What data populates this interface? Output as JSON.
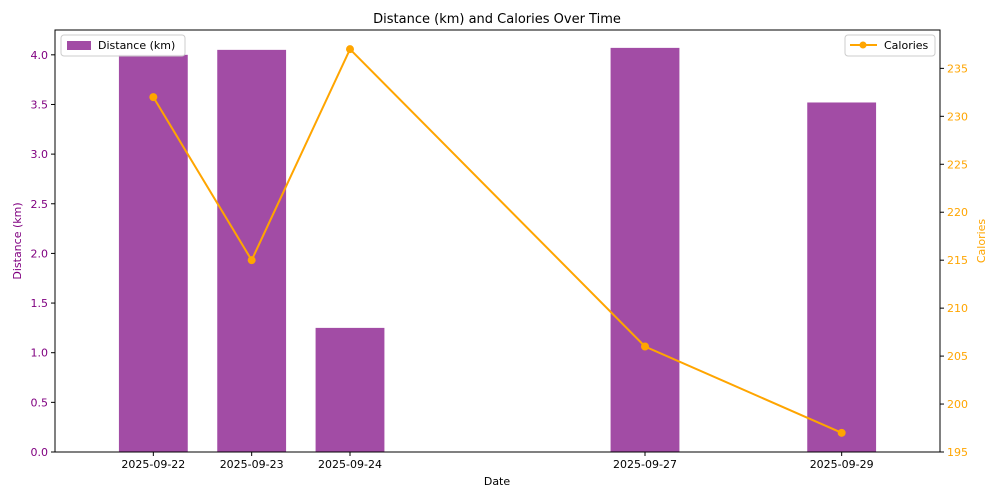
{
  "chart_data": {
    "type": "bar+line",
    "title": "Distance (km) and Calories Over Time",
    "xlabel": "Date",
    "x_axis_kind": "date",
    "x_range": [
      "2025-09-21",
      "2025-09-30"
    ],
    "categories": [
      "2025-09-22",
      "2025-09-23",
      "2025-09-24",
      "2025-09-27",
      "2025-09-29"
    ],
    "bar_series": {
      "name": "Distance (km)",
      "axis": "left",
      "color": "#a24ca5",
      "values": [
        4.0,
        4.05,
        1.25,
        4.07,
        3.52
      ]
    },
    "line_series": {
      "name": "Calories",
      "axis": "right",
      "color": "#ffa500",
      "marker": "circle",
      "values": [
        232,
        215,
        237,
        206,
        197
      ]
    },
    "y_left": {
      "label": "Distance (km)",
      "color": "#800080",
      "ylim": [
        0,
        4.25
      ],
      "ticks": [
        "0.0",
        "0.5",
        "1.0",
        "1.5",
        "2.0",
        "2.5",
        "3.0",
        "3.5",
        "4.0"
      ]
    },
    "y_right": {
      "label": "Calories",
      "color": "#ffa500",
      "ylim": [
        195,
        239
      ],
      "ticks": [
        "195",
        "200",
        "205",
        "210",
        "215",
        "220",
        "225",
        "230",
        "235"
      ]
    },
    "grid": false,
    "legend_left": {
      "placement": "top-left",
      "label": "Distance (km)"
    },
    "legend_right": {
      "placement": "top-right",
      "label": "Calories"
    }
  }
}
